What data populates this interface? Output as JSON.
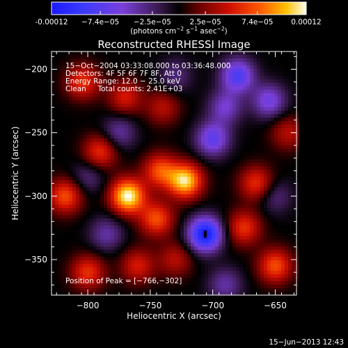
{
  "colorbar": {
    "tick_labels": [
      "-0.00012",
      "−7.4e−05",
      "−2.5e−05",
      "2.5e−05",
      "7.4e−05",
      "0.00012"
    ],
    "tick_values": [
      -0.00012,
      -7.4e-05,
      -2.5e-05,
      2.5e-05,
      7.4e-05,
      0.00012
    ],
    "units_main": "(photons cm",
    "units_exp1": "−2",
    "units_mid": " s",
    "units_exp2": "−1",
    "units_tail": " asec",
    "units_exp3": "−2",
    "units_close": ")",
    "range": [
      -0.00012,
      0.00012
    ]
  },
  "image": {
    "title": "Reconstructed RHESSI Image",
    "info_lines": [
      "15−Oct−2004 03:33:08.000  to  03:36:48.000",
      "Detectors: 4F 5F 6F 7F 8F, Att 0",
      "Energy Range: 12.0 − 25.0 keV",
      "Clean     Total counts: 2.41E+03"
    ],
    "peak_label": "Position of Peak = [−766,−302]",
    "timestamp": "15−Jun−2013 12:43"
  },
  "chart_data": {
    "type": "heatmap",
    "title": "Reconstructed RHESSI Image",
    "xlabel": "Heliocentric X (arcsec)",
    "ylabel": "Heliocentric Y (arcsec)",
    "xlim": [
      -829,
      -633
    ],
    "ylim": [
      -378,
      -186
    ],
    "x_ticks": [
      -800,
      -750,
      -700,
      -650
    ],
    "x_tick_labels": [
      "−800",
      "−750",
      "−700",
      "−650"
    ],
    "y_ticks": [
      -200,
      -250,
      -300,
      -350
    ],
    "y_tick_labels": [
      "−200",
      "−250",
      "−300",
      "−350"
    ],
    "value_range": [
      -0.00012,
      0.00012
    ],
    "peak_position": [
      -766,
      -302
    ],
    "sources": [
      {
        "x": -768,
        "y": -300,
        "value": 0.00012
      },
      {
        "x": -722,
        "y": -288,
        "value": 0.00011
      },
      {
        "x": -742,
        "y": -280,
        "value": 7e-05
      },
      {
        "x": -745,
        "y": -318,
        "value": 7e-05
      },
      {
        "x": -818,
        "y": -300,
        "value": 7e-05
      },
      {
        "x": -790,
        "y": -265,
        "value": 6e-05
      },
      {
        "x": -770,
        "y": -222,
        "value": 5e-05
      },
      {
        "x": -740,
        "y": -230,
        "value": 4e-05
      },
      {
        "x": -804,
        "y": -210,
        "value": 6e-05
      },
      {
        "x": -800,
        "y": -360,
        "value": 6e-05
      },
      {
        "x": -760,
        "y": -355,
        "value": 5e-05
      },
      {
        "x": -730,
        "y": -350,
        "value": 4e-05
      },
      {
        "x": -665,
        "y": -290,
        "value": 6e-05
      },
      {
        "x": -650,
        "y": -355,
        "value": 7e-05
      },
      {
        "x": -675,
        "y": -325,
        "value": 6e-05
      },
      {
        "x": -640,
        "y": -250,
        "value": 4e-05
      },
      {
        "x": -706,
        "y": -330,
        "value": -0.00012
      },
      {
        "x": -700,
        "y": -255,
        "value": -7e-05
      },
      {
        "x": -680,
        "y": -205,
        "value": -8e-05
      },
      {
        "x": -690,
        "y": -230,
        "value": -5e-05
      },
      {
        "x": -655,
        "y": -225,
        "value": -6e-05
      },
      {
        "x": -775,
        "y": -250,
        "value": -4e-05
      },
      {
        "x": -800,
        "y": -285,
        "value": -3e-05
      },
      {
        "x": -785,
        "y": -330,
        "value": -4e-05
      },
      {
        "x": -730,
        "y": -205,
        "value": -3e-05
      },
      {
        "x": -690,
        "y": -370,
        "value": -4e-05
      },
      {
        "x": -650,
        "y": -300,
        "value": -3e-05
      }
    ]
  }
}
